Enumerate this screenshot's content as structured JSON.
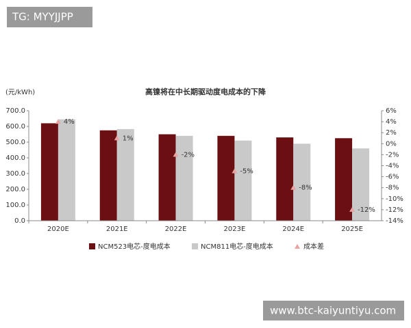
{
  "watermarks": [
    "TG: MYYJJPP",
    "www.btc-kaiyuntiyu.com"
  ],
  "chart_data": {
    "type": "bar",
    "title": "高镍将在中长期驱动度电成本的下降",
    "y_label": "(元/kWh)",
    "categories": [
      "2020E",
      "2021E",
      "2022E",
      "2023E",
      "2024E",
      "2025E"
    ],
    "series": [
      {
        "name": "NCM523电芯-度电成本",
        "type": "bar",
        "color": "#6b0f12",
        "values": [
          620,
          575,
          550,
          540,
          530,
          525
        ]
      },
      {
        "name": "NCM811电芯-度电成本",
        "type": "bar",
        "color": "#c9c9c9",
        "values": [
          645,
          583,
          540,
          510,
          490,
          460
        ]
      },
      {
        "name": "成本差",
        "type": "scatter",
        "axis": "y2",
        "color": "#e8a3a3",
        "values": [
          4,
          1,
          -2,
          -5,
          -8,
          -12
        ],
        "value_labels": [
          "4%",
          "1%",
          "-2%",
          "-5%",
          "-8%",
          "-12%"
        ]
      }
    ],
    "ylim": [
      0,
      700
    ],
    "yticks": [
      {
        "value": 0,
        "label": "0.0"
      },
      {
        "value": 100,
        "label": "100.0"
      },
      {
        "value": 200,
        "label": "200.0"
      },
      {
        "value": 300,
        "label": "300.0"
      },
      {
        "value": 400,
        "label": "400.0"
      },
      {
        "value": 500,
        "label": "500.0"
      },
      {
        "value": 600,
        "label": "600.0"
      },
      {
        "value": 700,
        "label": "700.0"
      }
    ],
    "y2lim": [
      -14,
      6
    ],
    "y2ticks": [
      {
        "value": 6,
        "label": "6%"
      },
      {
        "value": 4,
        "label": "4%"
      },
      {
        "value": 2,
        "label": "2%"
      },
      {
        "value": 0,
        "label": "0%"
      },
      {
        "value": -2,
        "label": "-2%"
      },
      {
        "value": -4,
        "label": "-4%"
      },
      {
        "value": -6,
        "label": "-6%"
      },
      {
        "value": -8,
        "label": "-8%"
      },
      {
        "value": -10,
        "label": "-10%"
      },
      {
        "value": -12,
        "label": "-12%"
      },
      {
        "value": -14,
        "label": "-14%"
      }
    ],
    "legend": "bottom"
  }
}
